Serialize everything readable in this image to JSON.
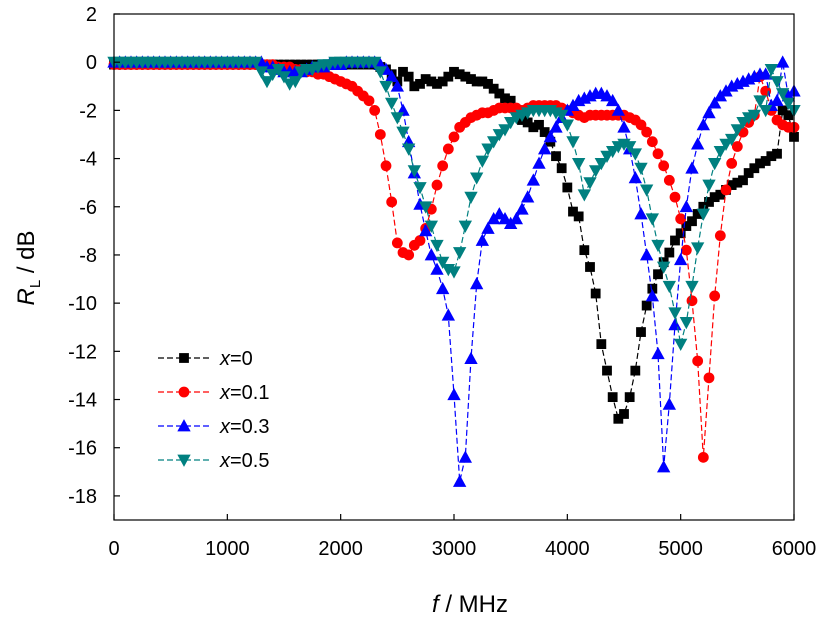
{
  "chart_data": {
    "type": "line",
    "xlabel_var": "f",
    "xlabel_unit": " / MHz",
    "ylabel_var": "R",
    "ylabel_sub": "L",
    "ylabel_unit": " / dB",
    "xlim": [
      0,
      6000
    ],
    "ylim": [
      -19,
      2
    ],
    "xticks": [
      0,
      1000,
      2000,
      3000,
      4000,
      5000,
      6000
    ],
    "yticks": [
      2,
      0,
      -2,
      -4,
      -6,
      -8,
      -10,
      -12,
      -14,
      -16,
      -18
    ],
    "grid": false,
    "legend_position": "lower-left",
    "series": [
      {
        "name_var": "x",
        "name_val": "=0",
        "color": "#000000",
        "marker": "square",
        "x": [
          0,
          50,
          100,
          150,
          200,
          250,
          300,
          350,
          400,
          450,
          500,
          550,
          600,
          650,
          700,
          750,
          800,
          850,
          900,
          950,
          1000,
          1050,
          1100,
          1150,
          1200,
          1250,
          1300,
          1350,
          1400,
          1450,
          1500,
          1550,
          1600,
          1650,
          1700,
          1750,
          1800,
          1850,
          1900,
          1950,
          2000,
          2050,
          2100,
          2150,
          2200,
          2250,
          2300,
          2350,
          2400,
          2450,
          2500,
          2550,
          2600,
          2650,
          2700,
          2750,
          2800,
          2850,
          2900,
          2950,
          3000,
          3050,
          3100,
          3150,
          3200,
          3250,
          3300,
          3350,
          3400,
          3450,
          3500,
          3550,
          3600,
          3650,
          3700,
          3750,
          3800,
          3850,
          3900,
          3950,
          4000,
          4050,
          4100,
          4150,
          4200,
          4250,
          4300,
          4350,
          4400,
          4450,
          4500,
          4550,
          4600,
          4650,
          4700,
          4750,
          4800,
          4850,
          4900,
          4950,
          5000,
          5050,
          5100,
          5150,
          5200,
          5250,
          5300,
          5350,
          5400,
          5450,
          5500,
          5550,
          5600,
          5650,
          5700,
          5750,
          5800,
          5850,
          5900,
          5950,
          6000
        ],
        "y": [
          -0.1,
          -0.1,
          -0.1,
          -0.1,
          -0.1,
          -0.1,
          -0.1,
          -0.1,
          -0.1,
          -0.1,
          -0.1,
          -0.1,
          -0.1,
          -0.1,
          -0.1,
          -0.1,
          -0.1,
          -0.1,
          -0.1,
          -0.1,
          -0.1,
          -0.1,
          -0.1,
          -0.1,
          -0.1,
          -0.1,
          -0.1,
          -0.1,
          -0.1,
          -0.1,
          -0.1,
          -0.1,
          -0.1,
          -0.1,
          -0.1,
          -0.1,
          -0.1,
          -0.1,
          -0.1,
          -0.1,
          -0.1,
          -0.1,
          -0.1,
          -0.1,
          -0.1,
          -0.1,
          -0.1,
          -0.2,
          -0.3,
          -0.5,
          -0.8,
          -0.4,
          -0.6,
          -1.0,
          -0.9,
          -0.7,
          -0.8,
          -0.9,
          -0.8,
          -0.6,
          -0.4,
          -0.5,
          -0.6,
          -0.7,
          -0.8,
          -0.8,
          -0.9,
          -1.1,
          -1.3,
          -1.5,
          -1.6,
          -2.0,
          -2.4,
          -2.5,
          -2.7,
          -2.6,
          -2.9,
          -3.3,
          -3.9,
          -4.4,
          -5.2,
          -6.2,
          -6.4,
          -7.8,
          -8.5,
          -9.6,
          -11.7,
          -12.8,
          -13.9,
          -14.8,
          -14.6,
          -13.9,
          -12.8,
          -11.2,
          -10.1,
          -9.4,
          -8.8,
          -8.3,
          -7.9,
          -7.4,
          -7.1,
          -6.8,
          -6.6,
          -6.3,
          -6.0,
          -5.8,
          -5.6,
          -5.5,
          -5.3,
          -5.1,
          -5.0,
          -4.9,
          -4.6,
          -4.4,
          -4.2,
          -4.1,
          -3.9,
          -3.8,
          -2.0,
          -2.2,
          -3.1
        ]
      },
      {
        "name_var": "x",
        "name_val": "=0.1",
        "color": "#ff0000",
        "marker": "circle",
        "x": [
          0,
          50,
          100,
          150,
          200,
          250,
          300,
          350,
          400,
          450,
          500,
          550,
          600,
          650,
          700,
          750,
          800,
          850,
          900,
          950,
          1000,
          1050,
          1100,
          1150,
          1200,
          1250,
          1300,
          1350,
          1400,
          1450,
          1500,
          1550,
          1600,
          1650,
          1700,
          1750,
          1800,
          1850,
          1900,
          1950,
          2000,
          2050,
          2100,
          2150,
          2200,
          2250,
          2300,
          2350,
          2400,
          2450,
          2500,
          2550,
          2600,
          2650,
          2700,
          2750,
          2800,
          2850,
          2900,
          2950,
          3000,
          3050,
          3100,
          3150,
          3200,
          3250,
          3300,
          3350,
          3400,
          3450,
          3500,
          3550,
          3600,
          3650,
          3700,
          3750,
          3800,
          3850,
          3900,
          3950,
          4000,
          4050,
          4100,
          4150,
          4200,
          4250,
          4300,
          4350,
          4400,
          4450,
          4500,
          4550,
          4600,
          4650,
          4700,
          4750,
          4800,
          4850,
          4900,
          4950,
          5000,
          5050,
          5100,
          5150,
          5200,
          5250,
          5300,
          5350,
          5400,
          5450,
          5500,
          5550,
          5600,
          5650,
          5700,
          5750,
          5800,
          5850,
          5900,
          5950,
          6000
        ],
        "y": [
          -0.1,
          -0.1,
          -0.1,
          -0.1,
          -0.1,
          -0.1,
          -0.1,
          -0.1,
          -0.1,
          -0.1,
          -0.1,
          -0.1,
          -0.1,
          -0.1,
          -0.1,
          -0.1,
          -0.1,
          -0.1,
          -0.1,
          -0.1,
          -0.1,
          -0.1,
          -0.1,
          -0.1,
          -0.1,
          -0.1,
          -0.1,
          -0.1,
          -0.1,
          -0.2,
          -0.2,
          -0.2,
          -0.3,
          -0.3,
          -0.4,
          -0.4,
          -0.5,
          -0.5,
          -0.6,
          -0.7,
          -0.8,
          -0.9,
          -1.0,
          -1.2,
          -1.4,
          -1.6,
          -2.0,
          -3.0,
          -4.3,
          -5.8,
          -7.5,
          -7.9,
          -8.0,
          -7.6,
          -7.4,
          -6.9,
          -6.1,
          -5.1,
          -4.3,
          -3.6,
          -3.1,
          -2.7,
          -2.5,
          -2.3,
          -2.2,
          -2.1,
          -2.1,
          -2.0,
          -1.9,
          -1.9,
          -1.9,
          -1.9,
          -2.0,
          -1.9,
          -1.8,
          -1.8,
          -1.8,
          -1.8,
          -1.8,
          -1.9,
          -2.0,
          -2.1,
          -2.2,
          -2.3,
          -2.2,
          -2.2,
          -2.2,
          -2.2,
          -2.2,
          -2.2,
          -2.2,
          -2.3,
          -2.4,
          -2.6,
          -2.9,
          -3.3,
          -3.8,
          -4.3,
          -4.9,
          -5.6,
          -6.5,
          -7.8,
          -9.9,
          -12.4,
          -16.4,
          -13.1,
          -9.7,
          -7.2,
          -5.3,
          -4.2,
          -3.5,
          -2.9,
          -2.5,
          -2.2,
          -0.6,
          -1.2,
          -2.0,
          -2.4,
          -2.6,
          -2.7,
          -2.7
        ]
      },
      {
        "name_var": "x",
        "name_val": "=0.3",
        "color": "#0000ff",
        "marker": "triangle-up",
        "x": [
          0,
          50,
          100,
          150,
          200,
          250,
          300,
          350,
          400,
          450,
          500,
          550,
          600,
          650,
          700,
          750,
          800,
          850,
          900,
          950,
          1000,
          1050,
          1100,
          1150,
          1200,
          1250,
          1300,
          1350,
          1400,
          1450,
          1500,
          1550,
          1600,
          1650,
          1700,
          1750,
          1800,
          1850,
          1900,
          1950,
          2000,
          2050,
          2100,
          2150,
          2200,
          2250,
          2300,
          2350,
          2400,
          2450,
          2500,
          2550,
          2600,
          2650,
          2700,
          2750,
          2800,
          2850,
          2900,
          2950,
          3000,
          3050,
          3100,
          3150,
          3200,
          3250,
          3300,
          3350,
          3400,
          3450,
          3500,
          3550,
          3600,
          3650,
          3700,
          3750,
          3800,
          3850,
          3900,
          3950,
          4000,
          4050,
          4100,
          4150,
          4200,
          4250,
          4300,
          4350,
          4400,
          4450,
          4500,
          4550,
          4600,
          4650,
          4700,
          4750,
          4800,
          4850,
          4900,
          4950,
          5000,
          5050,
          5100,
          5150,
          5200,
          5250,
          5300,
          5350,
          5400,
          5450,
          5500,
          5550,
          5600,
          5650,
          5700,
          5750,
          5800,
          5850,
          5900,
          5950,
          6000
        ],
        "y": [
          0.0,
          0.0,
          0.0,
          0.0,
          0.0,
          0.0,
          0.0,
          0.0,
          0.0,
          0.0,
          0.0,
          0.0,
          0.0,
          0.0,
          0.0,
          0.0,
          0.0,
          0.0,
          0.0,
          0.0,
          0.0,
          0.0,
          0.0,
          0.0,
          0.0,
          0.0,
          0.0,
          -0.2,
          -0.2,
          -0.3,
          -0.4,
          -0.4,
          -0.4,
          -0.4,
          -0.3,
          -0.2,
          -0.2,
          -0.2,
          -0.1,
          -0.1,
          -0.1,
          0.0,
          0.0,
          0.0,
          0.0,
          0.0,
          0.0,
          -0.1,
          -0.3,
          -0.6,
          -1.0,
          -2.0,
          -3.3,
          -4.6,
          -5.9,
          -7.0,
          -8.0,
          -8.6,
          -9.4,
          -10.5,
          -13.8,
          -17.4,
          -16.4,
          -12.3,
          -9.2,
          -7.4,
          -6.9,
          -6.5,
          -6.3,
          -6.5,
          -6.7,
          -6.5,
          -6.1,
          -5.6,
          -4.9,
          -4.2,
          -3.6,
          -3.1,
          -2.7,
          -2.3,
          -2.0,
          -1.8,
          -1.6,
          -1.5,
          -1.4,
          -1.3,
          -1.3,
          -1.4,
          -1.6,
          -2.0,
          -2.7,
          -3.6,
          -4.8,
          -6.3,
          -8.0,
          -9.7,
          -12.1,
          -16.8,
          -14.2,
          -10.9,
          -8.2,
          -6.0,
          -4.4,
          -3.4,
          -2.6,
          -2.1,
          -1.7,
          -1.4,
          -1.2,
          -1.0,
          -0.9,
          -0.8,
          -0.7,
          -0.6,
          -0.5,
          -0.5,
          -1.8,
          -1.6,
          0.0,
          -1.4,
          -1.2
        ]
      },
      {
        "name_var": "x",
        "name_val": "=0.5",
        "color": "#008080",
        "marker": "triangle-down",
        "x": [
          0,
          50,
          100,
          150,
          200,
          250,
          300,
          350,
          400,
          450,
          500,
          550,
          600,
          650,
          700,
          750,
          800,
          850,
          900,
          950,
          1000,
          1050,
          1100,
          1150,
          1200,
          1250,
          1300,
          1350,
          1400,
          1450,
          1500,
          1550,
          1600,
          1650,
          1700,
          1750,
          1800,
          1850,
          1900,
          1950,
          2000,
          2050,
          2100,
          2150,
          2200,
          2250,
          2300,
          2350,
          2400,
          2450,
          2500,
          2550,
          2600,
          2650,
          2700,
          2750,
          2800,
          2850,
          2900,
          2950,
          3000,
          3050,
          3100,
          3150,
          3200,
          3250,
          3300,
          3350,
          3400,
          3450,
          3500,
          3550,
          3600,
          3650,
          3700,
          3750,
          3800,
          3850,
          3900,
          3950,
          4000,
          4050,
          4100,
          4150,
          4200,
          4250,
          4300,
          4350,
          4400,
          4450,
          4500,
          4550,
          4600,
          4650,
          4700,
          4750,
          4800,
          4850,
          4900,
          4950,
          5000,
          5050,
          5100,
          5150,
          5200,
          5250,
          5300,
          5350,
          5400,
          5450,
          5500,
          5550,
          5600,
          5650,
          5700,
          5750,
          5800,
          5850,
          5900,
          5950,
          6000
        ],
        "y": [
          0.0,
          0.0,
          0.0,
          0.0,
          0.0,
          0.0,
          0.0,
          0.0,
          0.0,
          0.0,
          0.0,
          0.0,
          0.0,
          0.0,
          0.0,
          0.0,
          0.0,
          0.0,
          0.0,
          0.0,
          0.0,
          0.0,
          0.0,
          0.0,
          0.0,
          0.0,
          -0.4,
          -0.8,
          -0.5,
          -0.3,
          -0.6,
          -0.9,
          -0.8,
          -0.4,
          -0.3,
          -0.3,
          -0.2,
          -0.1,
          -0.1,
          0.0,
          0.0,
          0.0,
          0.0,
          0.0,
          0.0,
          0.0,
          0.0,
          -0.4,
          -1.0,
          -1.7,
          -2.3,
          -2.9,
          -3.6,
          -4.5,
          -5.2,
          -6.0,
          -6.8,
          -7.6,
          -8.3,
          -8.6,
          -8.7,
          -7.9,
          -6.8,
          -5.6,
          -4.8,
          -4.1,
          -3.6,
          -3.3,
          -3.0,
          -2.8,
          -2.5,
          -2.3,
          -2.2,
          -2.1,
          -2.0,
          -2.0,
          -2.0,
          -2.0,
          -2.1,
          -2.2,
          -2.6,
          -3.3,
          -4.2,
          -5.5,
          -5.0,
          -4.5,
          -4.2,
          -3.9,
          -3.7,
          -3.5,
          -3.4,
          -3.5,
          -3.8,
          -4.4,
          -5.3,
          -6.5,
          -7.6,
          -8.5,
          -9.3,
          -10.4,
          -11.7,
          -10.8,
          -9.3,
          -7.7,
          -6.3,
          -5.1,
          -4.2,
          -3.7,
          -3.4,
          -3.2,
          -2.8,
          -2.5,
          -2.3,
          -2.2,
          -1.6,
          -2.0,
          -0.3,
          -0.8,
          -1.3,
          -1.7,
          -2.0
        ]
      }
    ]
  }
}
